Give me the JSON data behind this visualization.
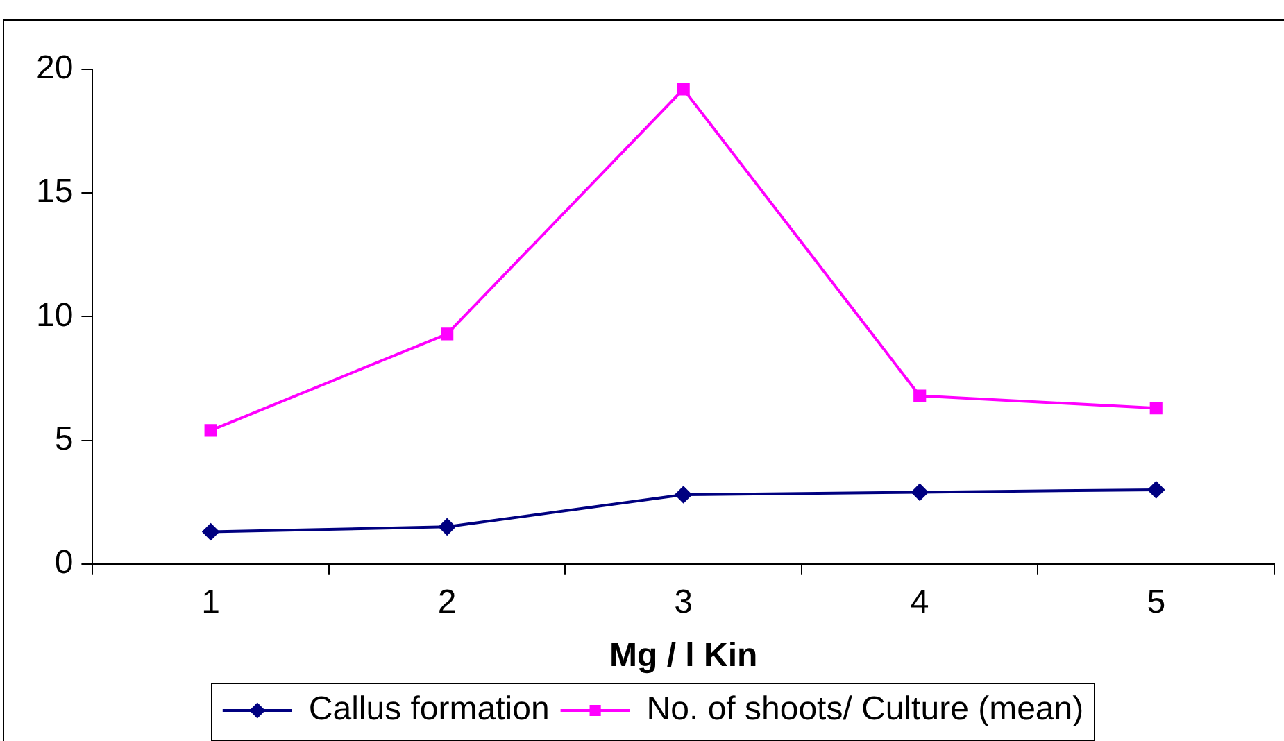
{
  "chart_data": {
    "type": "line",
    "xlabel": "Mg / l Kin",
    "categories": [
      "1",
      "2",
      "3",
      "4",
      "5"
    ],
    "series": [
      {
        "name": "Callus formation",
        "color": "#000080",
        "marker": "diamond",
        "values": [
          1.3,
          1.5,
          2.8,
          2.9,
          3.0
        ]
      },
      {
        "name": "No. of shoots/ Culture (mean)",
        "color": "#ff00ff",
        "marker": "square",
        "values": [
          5.4,
          9.3,
          19.2,
          6.8,
          6.3
        ]
      }
    ],
    "ylim": [
      0,
      20
    ],
    "yticks": [
      0,
      5,
      10,
      15,
      20
    ],
    "grid": false,
    "legend": "bottom",
    "line_style": "solid"
  }
}
